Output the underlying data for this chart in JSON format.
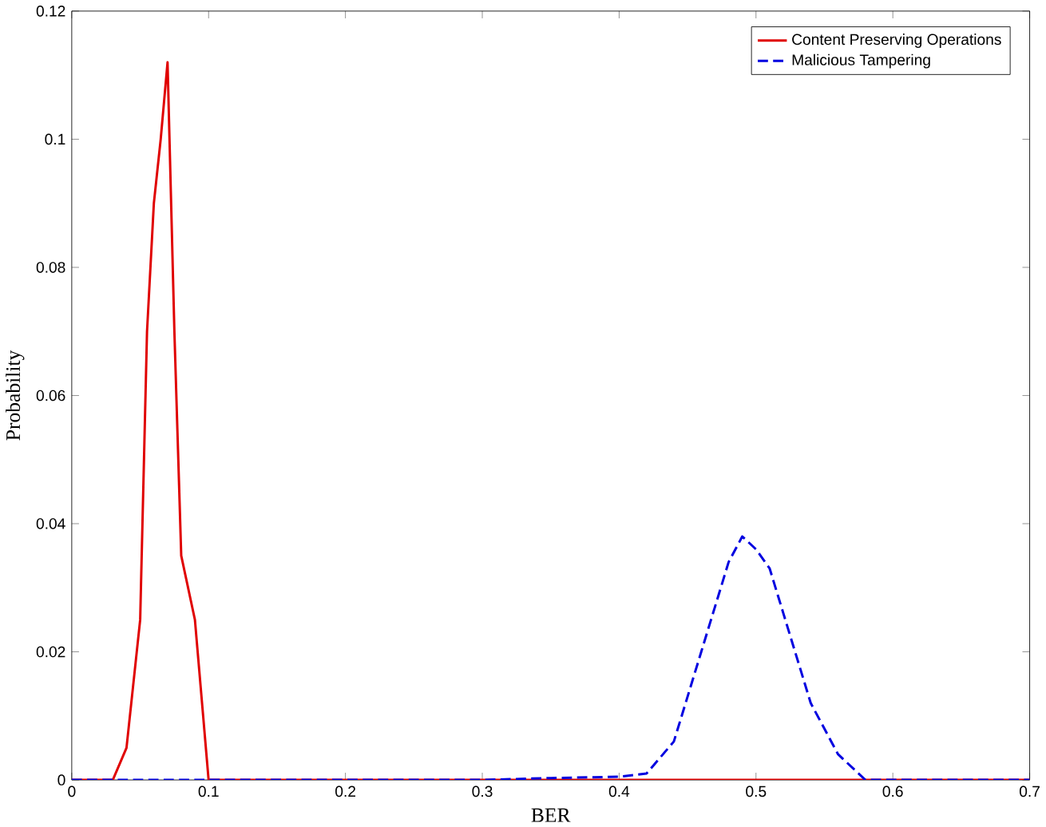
{
  "chart_data": {
    "type": "line",
    "xlabel": "BER",
    "ylabel": "Probability",
    "xlim": [
      0,
      0.7
    ],
    "ylim": [
      0,
      0.12
    ],
    "xticks": [
      0,
      0.1,
      0.2,
      0.3,
      0.4,
      0.5,
      0.6,
      0.7
    ],
    "yticks": [
      0,
      0.02,
      0.04,
      0.06,
      0.08,
      0.1,
      0.12
    ],
    "legend": "top right",
    "grid": false,
    "series": [
      {
        "name": "Content Preserving Operations",
        "color": "#e00000",
        "line_style": "solid",
        "x": [
          0,
          0.03,
          0.04,
          0.05,
          0.055,
          0.06,
          0.065,
          0.07,
          0.075,
          0.08,
          0.09,
          0.1,
          0.2,
          0.3,
          0.4,
          0.5,
          0.6,
          0.7
        ],
        "values": [
          0,
          0,
          0.005,
          0.025,
          0.07,
          0.09,
          0.1,
          0.112,
          0.07,
          0.035,
          0.025,
          0,
          0,
          0,
          0,
          0,
          0,
          0
        ]
      },
      {
        "name": "Malicious Tampering",
        "color": "#0000e0",
        "line_style": "dashed",
        "x": [
          0,
          0.1,
          0.2,
          0.3,
          0.35,
          0.4,
          0.42,
          0.44,
          0.46,
          0.48,
          0.49,
          0.5,
          0.51,
          0.52,
          0.54,
          0.56,
          0.58,
          0.6,
          0.7
        ],
        "values": [
          0,
          0,
          0,
          0,
          0.0003,
          0.0005,
          0.001,
          0.006,
          0.02,
          0.034,
          0.038,
          0.036,
          0.033,
          0.026,
          0.012,
          0.004,
          0,
          0,
          0
        ]
      }
    ]
  }
}
